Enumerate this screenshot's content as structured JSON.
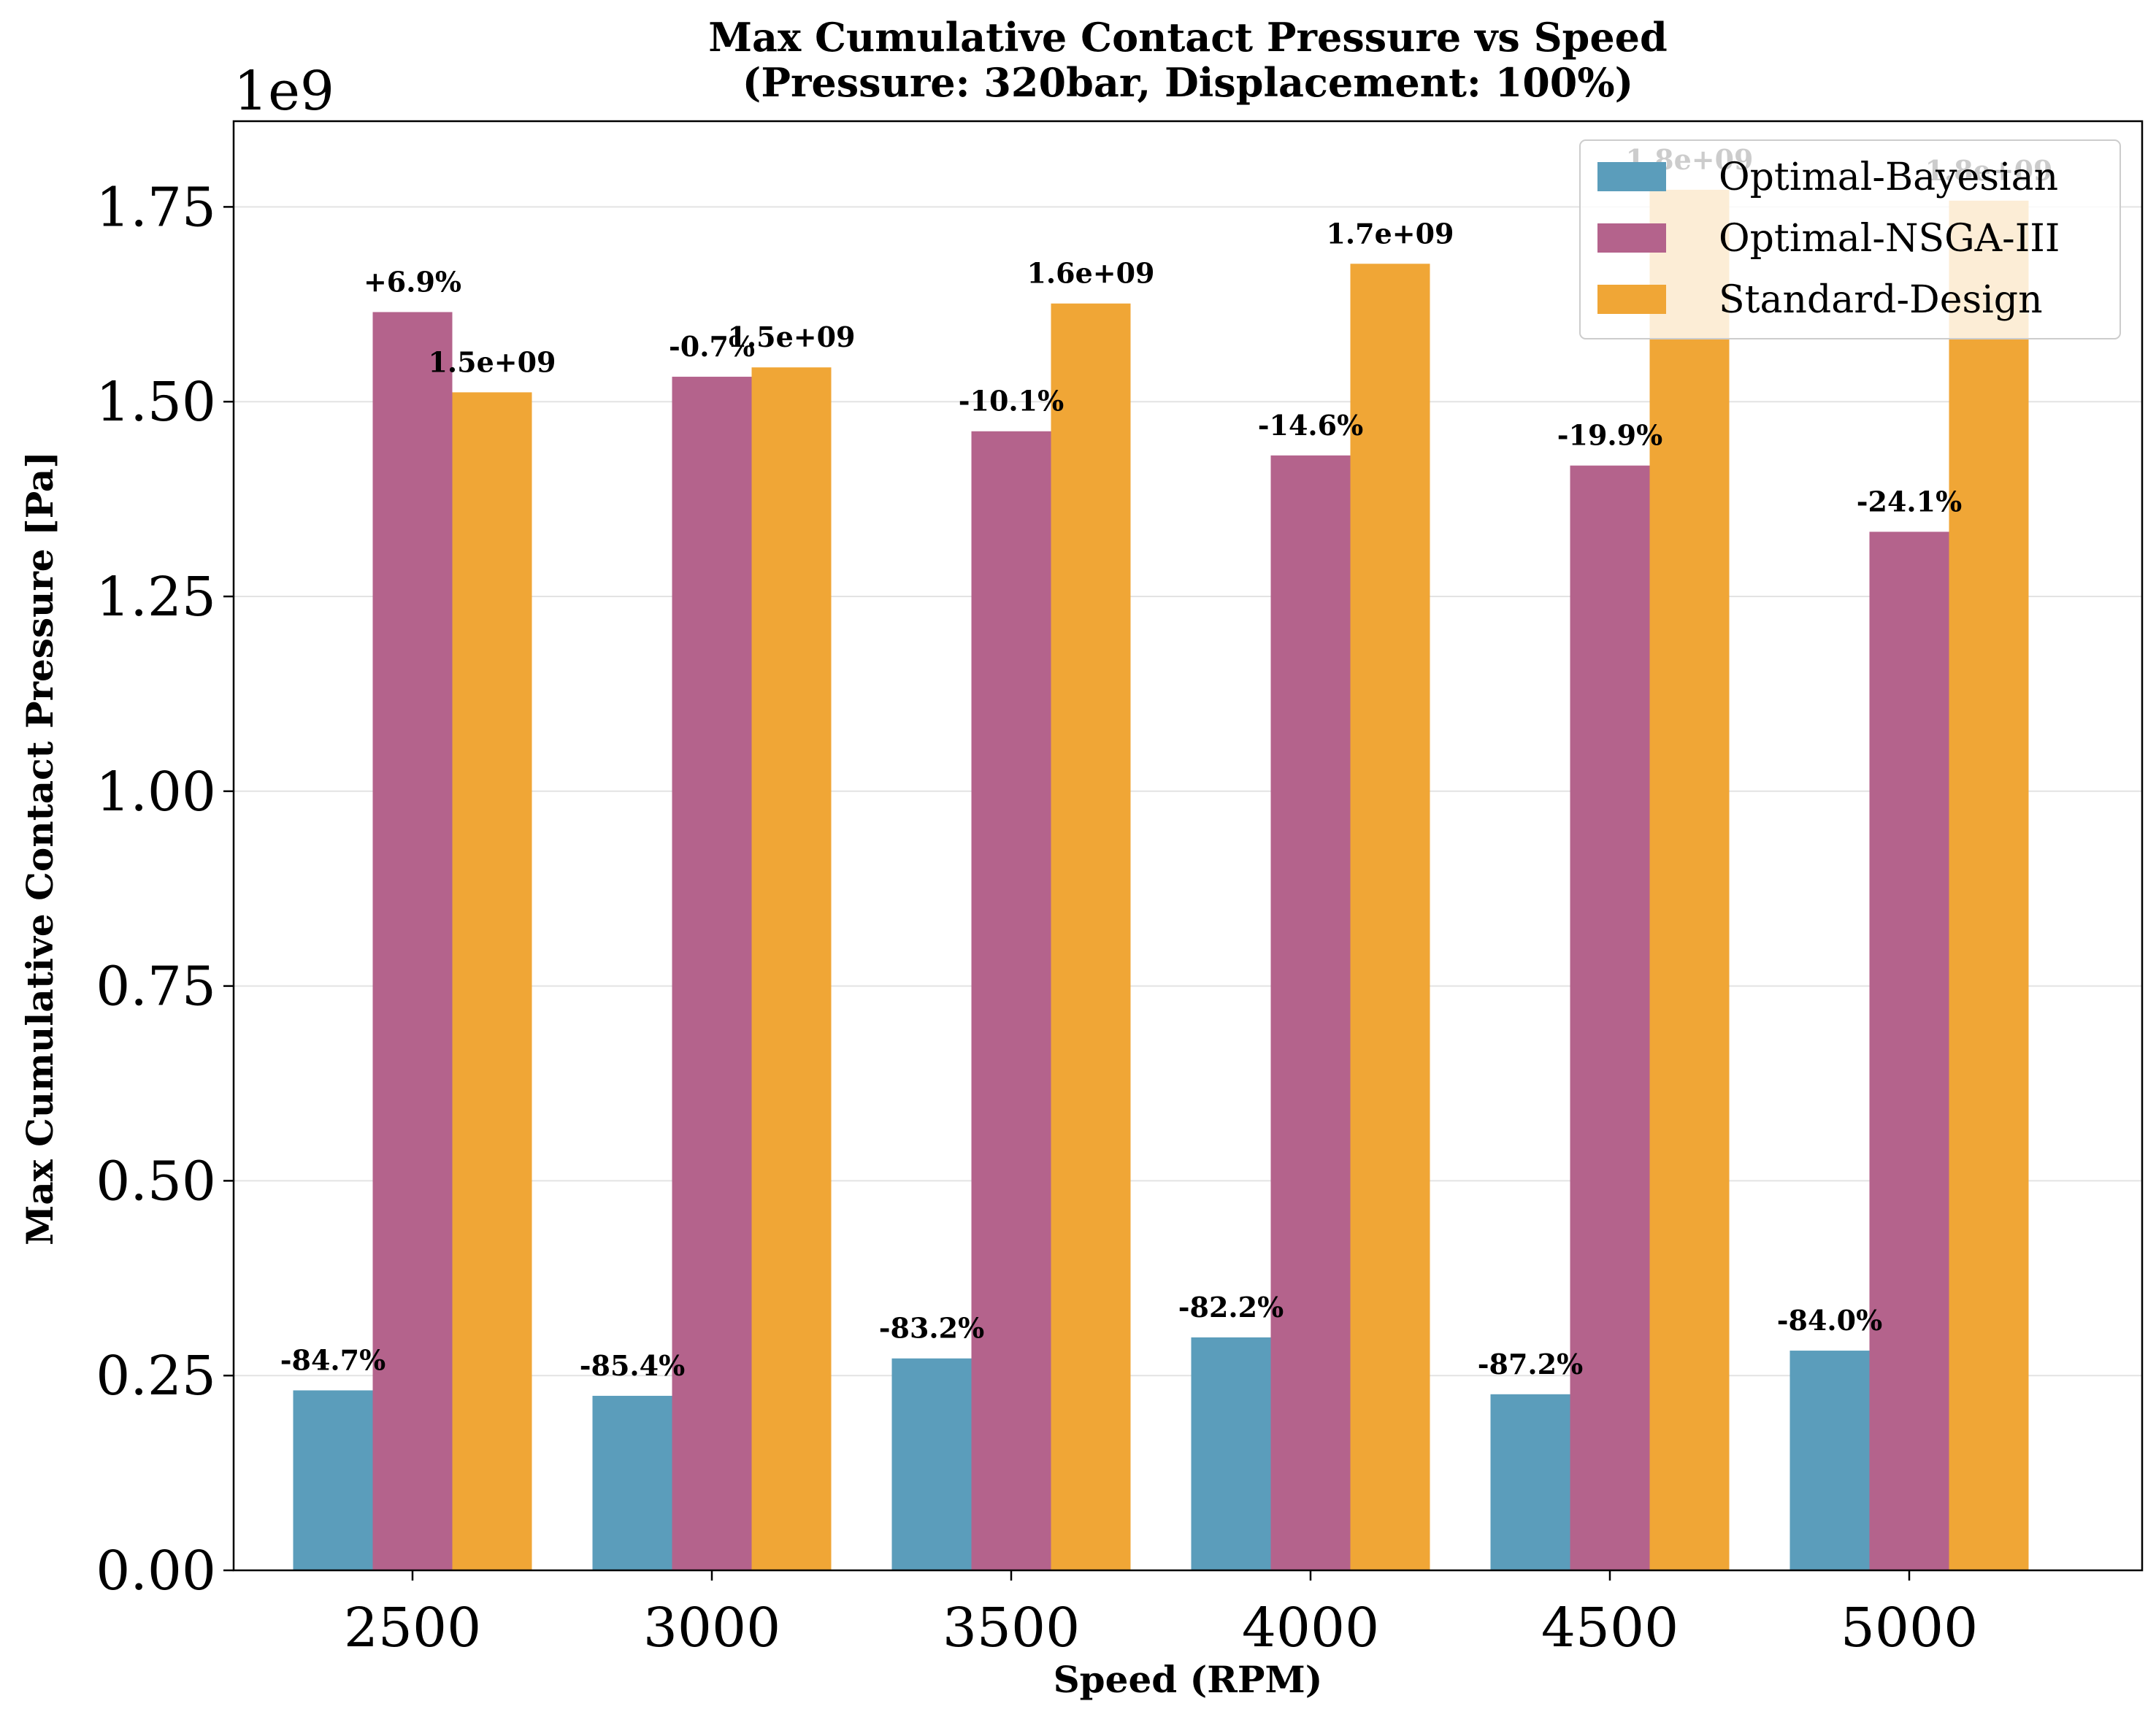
{
  "chart_data": {
    "type": "bar",
    "title": "Max Cumulative Contact Pressure vs Speed",
    "subtitle": "(Pressure: 320bar, Displacement: 100%)",
    "xlabel": "Speed (RPM)",
    "ylabel": "Max Cumulative Contact Pressure [Pa]",
    "y_offset_label": "1e9",
    "categories": [
      "2500",
      "3000",
      "3500",
      "4000",
      "4500",
      "5000"
    ],
    "ylim": [
      0,
      1.86
    ],
    "yticks": [
      "0.00",
      "0.25",
      "0.50",
      "0.75",
      "1.00",
      "1.25",
      "1.50",
      "1.75"
    ],
    "grid": "horizontal",
    "legend_position": "top-right",
    "series": [
      {
        "name": "Optimal-Bayesian",
        "color": "#5b9dbb",
        "values": [
          0.231,
          0.224,
          0.272,
          0.299,
          0.226,
          0.282
        ],
        "labels": [
          "-84.7%",
          "-85.4%",
          "-83.2%",
          "-82.2%",
          "-87.2%",
          "-84.0%"
        ]
      },
      {
        "name": "Optimal-NSGA-III",
        "color": "#b4638c",
        "values": [
          1.615,
          1.532,
          1.462,
          1.431,
          1.418,
          1.333
        ],
        "labels": [
          "+6.9%",
          "-0.7%",
          "-10.1%",
          "-14.6%",
          "-19.9%",
          "-24.1%"
        ]
      },
      {
        "name": "Standard-Design",
        "color": "#f0a636",
        "values": [
          1.512,
          1.544,
          1.626,
          1.677,
          1.772,
          1.758
        ],
        "labels": [
          "1.5e+09",
          "1.5e+09",
          "1.6e+09",
          "1.7e+09",
          "1.8e+09",
          "1.8e+09"
        ]
      }
    ]
  }
}
